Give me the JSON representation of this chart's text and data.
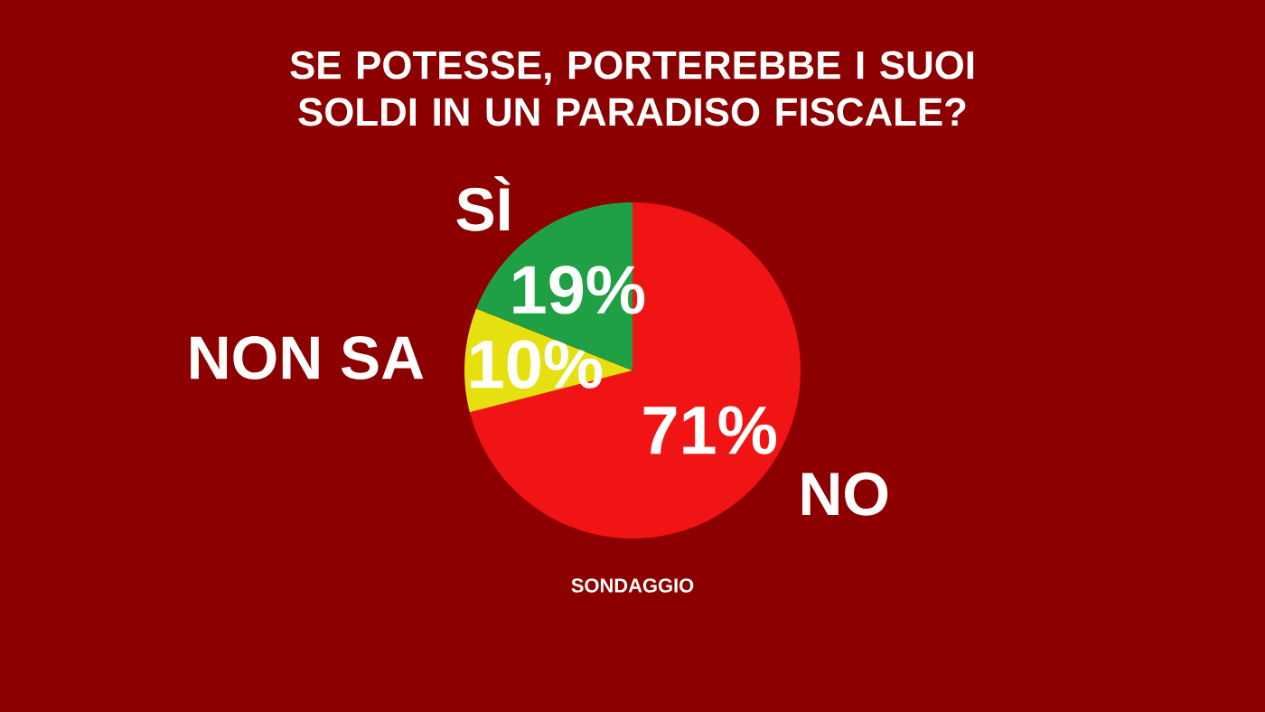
{
  "chart_data": {
    "type": "pie",
    "title": "SE POTESSE, PORTEREBBE I SUOI SOLDI IN UN PARADISO FISCALE?",
    "categories": [
      "NO",
      "NON SA",
      "SÌ"
    ],
    "values": [
      71,
      10,
      19
    ],
    "value_labels": [
      "71%",
      "10%",
      "19%"
    ],
    "colors": [
      "#f01414",
      "#e6e010",
      "#1fa045"
    ],
    "annotations": [
      "SONDAGGIO"
    ]
  }
}
